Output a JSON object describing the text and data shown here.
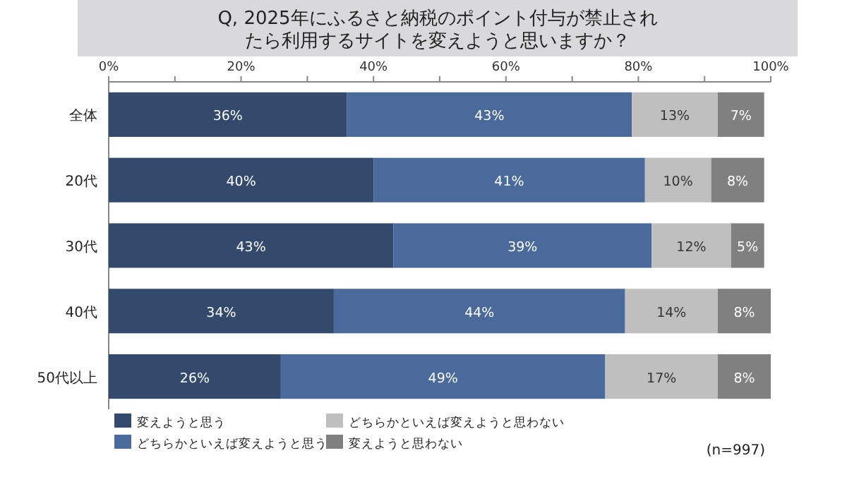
{
  "chart_data": {
    "type": "bar",
    "orientation": "horizontal",
    "stacked": true,
    "title": "Q, 2025年にふるさと納税のポイント付与が禁止されたら利用するサイトを変えようと思いますか？",
    "categories": [
      "全体",
      "20代",
      "30代",
      "40代",
      "50代以上"
    ],
    "series": [
      {
        "name": "変えようと思う",
        "color": "#344a6d",
        "values": [
          36,
          40,
          43,
          34,
          26
        ],
        "value_labels": [
          "36%",
          "40%",
          "43%",
          "34%",
          "26%"
        ]
      },
      {
        "name": "どちらかといえば変えようと思う",
        "color": "#4a6a9c",
        "values": [
          43,
          41,
          39,
          44,
          49
        ],
        "value_labels": [
          "43%",
          "41%",
          "39%",
          "44%",
          "49%"
        ]
      },
      {
        "name": "どちらかといえば変えようと思わない",
        "color": "#bfbfbf",
        "values": [
          13,
          10,
          12,
          14,
          17
        ],
        "value_labels": [
          "13%",
          "10%",
          "12%",
          "14%",
          "17%"
        ]
      },
      {
        "name": "変えようと思わない",
        "color": "#808080",
        "values": [
          7,
          8,
          5,
          8,
          8
        ],
        "value_labels": [
          "7%",
          "8%",
          "5%",
          "8%",
          "8%"
        ]
      }
    ],
    "xlim": [
      0,
      100
    ],
    "xticks": [
      {
        "value": 0,
        "label": "0%"
      },
      {
        "value": 10,
        "label": null
      },
      {
        "value": 20,
        "label": "20%"
      },
      {
        "value": 30,
        "label": null
      },
      {
        "value": 40,
        "label": "40%"
      },
      {
        "value": 50,
        "label": null
      },
      {
        "value": 60,
        "label": "60%"
      },
      {
        "value": 70,
        "label": null
      },
      {
        "value": 80,
        "label": "80%"
      },
      {
        "value": 90,
        "label": null
      },
      {
        "value": 100,
        "label": "100%"
      }
    ],
    "legend": "bottom left",
    "annotations": [
      "(n=997)"
    ]
  }
}
